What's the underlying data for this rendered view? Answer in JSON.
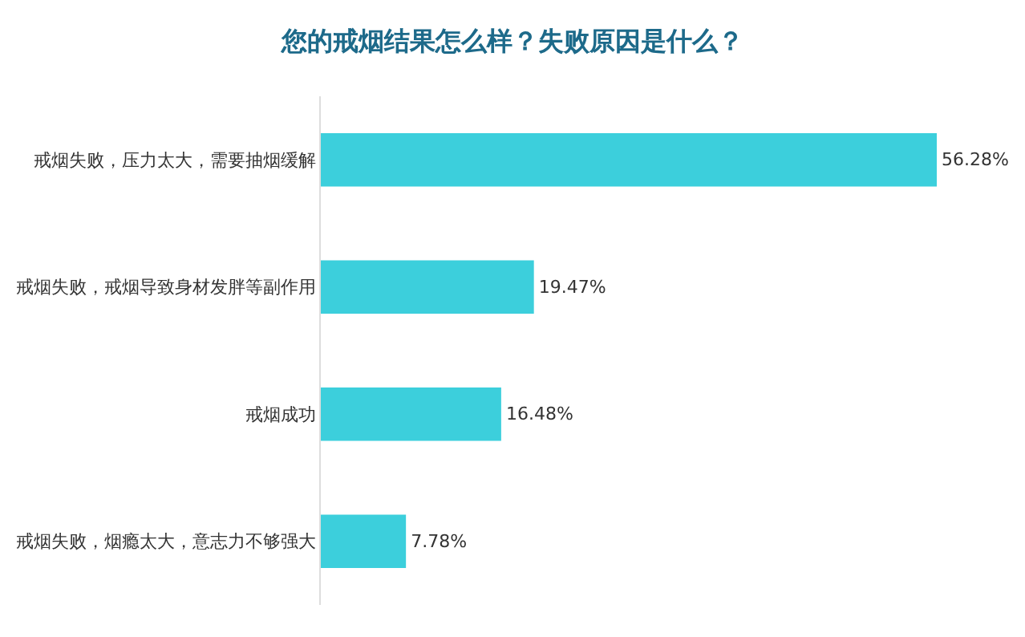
{
  "chart_data": {
    "type": "bar",
    "orientation": "horizontal",
    "title": "您的戒烟结果怎么样？失败原因是什么？",
    "categories": [
      "戒烟失败，压力太大，需要抽烟缓解",
      "戒烟失败，戒烟导致身材发胖等副作用",
      "戒烟成功",
      "戒烟失败，烟瘾太大，意志力不够强大"
    ],
    "values": [
      56.28,
      19.47,
      16.48,
      7.78
    ],
    "value_labels": [
      "56.28%",
      "19.47%",
      "16.48%",
      "7.78%"
    ],
    "color": "#3ccfdc"
  }
}
